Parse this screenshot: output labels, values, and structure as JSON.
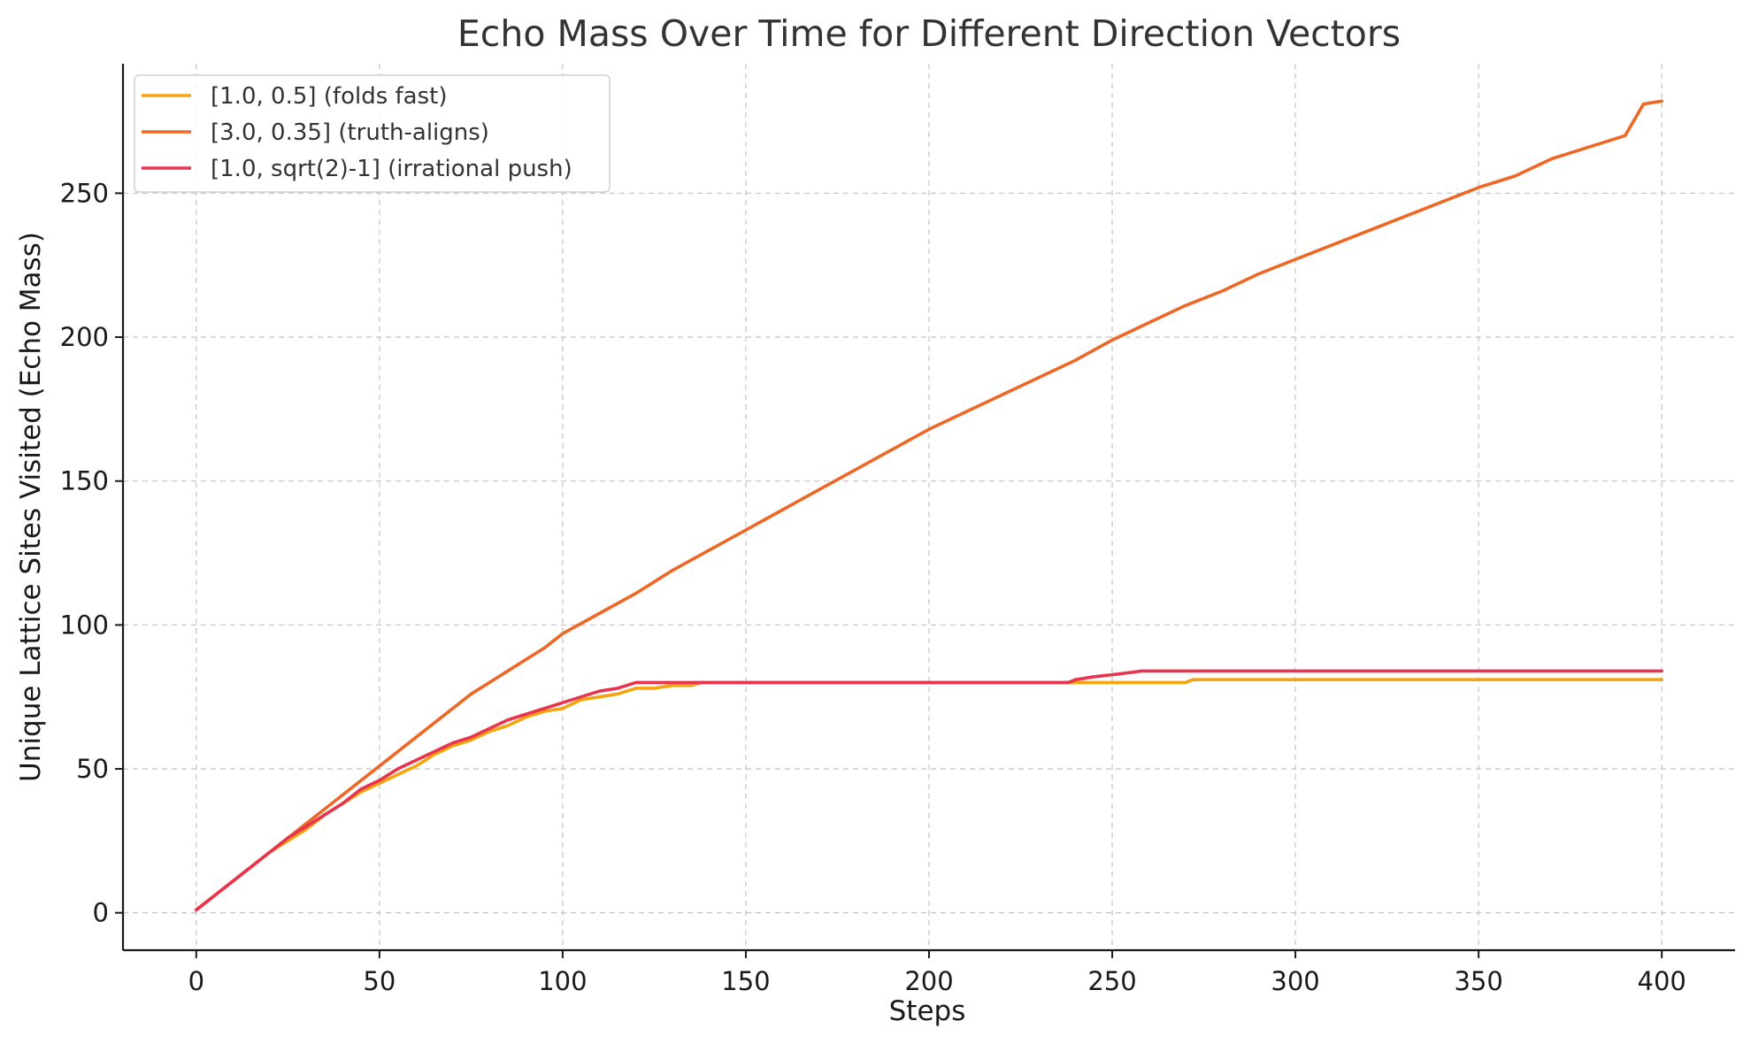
{
  "chart_data": {
    "type": "line",
    "title": "Echo Mass Over Time for Different Direction Vectors",
    "xlabel": "Steps",
    "ylabel": "Unique Lattice Sites Visited (Echo Mass)",
    "xlim": [
      -20,
      420
    ],
    "ylim": [
      -13,
      295
    ],
    "xticks": [
      0,
      50,
      100,
      150,
      200,
      250,
      300,
      350,
      400
    ],
    "yticks": [
      0,
      50,
      100,
      150,
      200,
      250
    ],
    "grid": true,
    "legend_position": "top-left",
    "series": [
      {
        "name": "[1.0, 0.5] (folds fast)",
        "color": "#f5a40f",
        "points": [
          [
            0,
            1
          ],
          [
            20,
            21
          ],
          [
            25,
            25
          ],
          [
            30,
            29
          ],
          [
            35,
            34
          ],
          [
            40,
            38
          ],
          [
            45,
            42
          ],
          [
            50,
            45
          ],
          [
            55,
            48
          ],
          [
            60,
            51
          ],
          [
            65,
            55
          ],
          [
            70,
            58
          ],
          [
            75,
            60
          ],
          [
            80,
            63
          ],
          [
            85,
            65
          ],
          [
            90,
            68
          ],
          [
            95,
            70
          ],
          [
            100,
            71
          ],
          [
            105,
            74
          ],
          [
            110,
            75
          ],
          [
            115,
            76
          ],
          [
            120,
            78
          ],
          [
            125,
            78
          ],
          [
            130,
            79
          ],
          [
            135,
            79
          ],
          [
            138,
            80
          ],
          [
            200,
            80
          ],
          [
            240,
            80
          ],
          [
            270,
            80
          ],
          [
            272,
            81
          ],
          [
            400,
            81
          ]
        ]
      },
      {
        "name": "[3.0, 0.35] (truth-aligns)",
        "color": "#ee6725",
        "points": [
          [
            0,
            1
          ],
          [
            25,
            26
          ],
          [
            50,
            51
          ],
          [
            75,
            76
          ],
          [
            85,
            84
          ],
          [
            95,
            92
          ],
          [
            100,
            97
          ],
          [
            110,
            104
          ],
          [
            120,
            111
          ],
          [
            130,
            119
          ],
          [
            140,
            126
          ],
          [
            150,
            133
          ],
          [
            160,
            140
          ],
          [
            170,
            147
          ],
          [
            180,
            154
          ],
          [
            190,
            161
          ],
          [
            200,
            168
          ],
          [
            210,
            174
          ],
          [
            220,
            180
          ],
          [
            230,
            186
          ],
          [
            240,
            192
          ],
          [
            250,
            199
          ],
          [
            260,
            205
          ],
          [
            270,
            211
          ],
          [
            280,
            216
          ],
          [
            290,
            222
          ],
          [
            300,
            227
          ],
          [
            310,
            232
          ],
          [
            320,
            237
          ],
          [
            330,
            242
          ],
          [
            340,
            247
          ],
          [
            350,
            252
          ],
          [
            360,
            256
          ],
          [
            370,
            262
          ],
          [
            380,
            266
          ],
          [
            390,
            270
          ],
          [
            395,
            281
          ],
          [
            400,
            282
          ]
        ]
      },
      {
        "name": "[1.0, sqrt(2)-1] (irrational push)",
        "color": "#e8344e",
        "points": [
          [
            0,
            1
          ],
          [
            20,
            21
          ],
          [
            25,
            26
          ],
          [
            30,
            30
          ],
          [
            35,
            34
          ],
          [
            40,
            38
          ],
          [
            45,
            43
          ],
          [
            50,
            46
          ],
          [
            55,
            50
          ],
          [
            60,
            53
          ],
          [
            65,
            56
          ],
          [
            70,
            59
          ],
          [
            75,
            61
          ],
          [
            80,
            64
          ],
          [
            85,
            67
          ],
          [
            90,
            69
          ],
          [
            95,
            71
          ],
          [
            100,
            73
          ],
          [
            105,
            75
          ],
          [
            110,
            77
          ],
          [
            115,
            78
          ],
          [
            120,
            80
          ],
          [
            150,
            80
          ],
          [
            200,
            80
          ],
          [
            238,
            80
          ],
          [
            240,
            81
          ],
          [
            245,
            82
          ],
          [
            252,
            83
          ],
          [
            258,
            84
          ],
          [
            400,
            84
          ]
        ]
      }
    ]
  }
}
